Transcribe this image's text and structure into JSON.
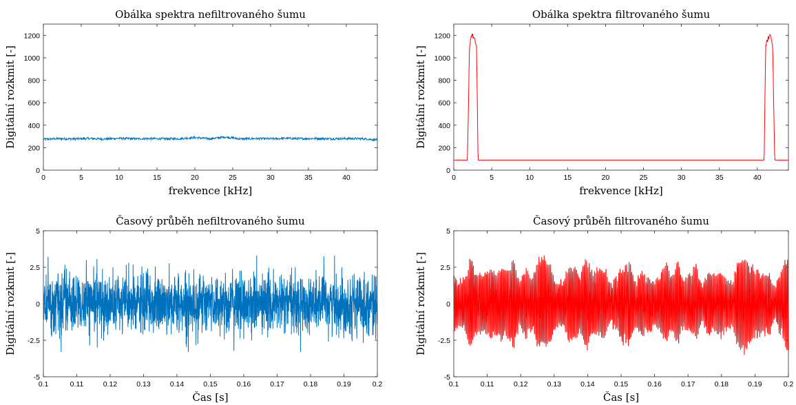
{
  "chart_data": [
    {
      "type": "line",
      "title": "Obálka spektra nefiltrovaného šumu",
      "xlabel": "frekvence [kHz]",
      "ylabel": "Digitální rozkmit [-]",
      "xlim": [
        0,
        44.1
      ],
      "ylim": [
        0,
        1300
      ],
      "xticks": [
        0,
        5,
        10,
        15,
        20,
        25,
        30,
        35,
        40
      ],
      "yticks": [
        0,
        200,
        400,
        600,
        800,
        1000,
        1200
      ],
      "color": "#0072BD",
      "series": [
        {
          "x": [
            0,
            2,
            4,
            6,
            8,
            10,
            12,
            14,
            16,
            18,
            20,
            22,
            24,
            26,
            28,
            30,
            32,
            34,
            36,
            38,
            40,
            42,
            44.1
          ],
          "y": [
            275,
            280,
            278,
            282,
            277,
            283,
            279,
            281,
            278,
            280,
            290,
            279,
            295,
            278,
            281,
            279,
            283,
            280,
            282,
            279,
            281,
            280,
            270
          ],
          "noise_amplitude": 10
        }
      ]
    },
    {
      "type": "line",
      "title": "Obálka spektra filtrovaného šumu",
      "xlabel": "frekvence [kHz]",
      "ylabel": "Digitální rozkmit [-]",
      "xlim": [
        0,
        44.1
      ],
      "ylim": [
        0,
        1300
      ],
      "xticks": [
        0,
        5,
        10,
        15,
        20,
        25,
        30,
        35,
        40
      ],
      "yticks": [
        0,
        200,
        400,
        600,
        800,
        1000,
        1200
      ],
      "color": "#FF0000",
      "series": [
        {
          "x": [
            0,
            1.8,
            1.95,
            2.05,
            2.2,
            2.4,
            2.6,
            2.8,
            3.0,
            3.1,
            3.2,
            40.9,
            41.0,
            41.1,
            41.3,
            41.5,
            41.7,
            41.9,
            42.05,
            42.15,
            42.3,
            44.1
          ],
          "y": [
            90,
            90,
            600,
            1050,
            1170,
            1210,
            1180,
            1150,
            1100,
            600,
            90,
            90,
            600,
            1100,
            1150,
            1180,
            1210,
            1170,
            1050,
            600,
            90,
            90
          ],
          "noise_amplitude": 20
        }
      ]
    },
    {
      "type": "line",
      "title": "Časový průběh nefiltrovaného šumu",
      "xlabel": "Čas [s]",
      "ylabel": "Digitální rozkmit [-]",
      "xlim": [
        0.1,
        0.2
      ],
      "ylim": [
        -5,
        5
      ],
      "xticks": [
        0.1,
        0.11,
        0.12,
        0.13,
        0.14,
        0.15,
        0.16,
        0.17,
        0.18,
        0.19,
        0.2
      ],
      "yticks": [
        -5,
        -2.5,
        0,
        2.5,
        5
      ],
      "color": "#0072BD",
      "series": [
        {
          "x_range": [
            0.1,
            0.2
          ],
          "y_range": [
            -3.3,
            3.3
          ],
          "mean": 0,
          "std": 1.0
        }
      ]
    },
    {
      "type": "line",
      "title": "Časový průběh filtrovaného šumu",
      "xlabel": "Čas [s]",
      "ylabel": "Digitální rozkmit [-]",
      "xlim": [
        0.1,
        0.2
      ],
      "ylim": [
        -5,
        5
      ],
      "xticks": [
        0.1,
        0.11,
        0.12,
        0.13,
        0.14,
        0.15,
        0.16,
        0.17,
        0.18,
        0.19,
        0.2
      ],
      "yticks": [
        -5,
        -2.5,
        0,
        2.5,
        5
      ],
      "color": "#FF0000",
      "series": [
        {
          "x_range": [
            0.1,
            0.2
          ],
          "y_range": [
            -4.2,
            4.5
          ],
          "mean": 0,
          "std": 1.1,
          "dominant_freq_khz": 2.6
        }
      ]
    }
  ]
}
